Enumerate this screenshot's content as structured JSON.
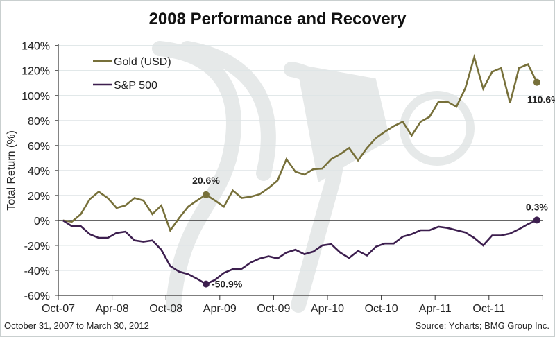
{
  "chart_data": {
    "type": "line",
    "title": "2008 Performance and Recovery",
    "ylabel": "Total Return (%)",
    "xlabel": "",
    "ylim": [
      -60,
      140
    ],
    "yticks": [
      "-60%",
      "-40%",
      "-20%",
      "0%",
      "20%",
      "40%",
      "60%",
      "80%",
      "100%",
      "120%",
      "140%"
    ],
    "ytick_values": [
      -60,
      -40,
      -20,
      0,
      20,
      40,
      60,
      80,
      100,
      120,
      140
    ],
    "xticks": [
      "Oct-07",
      "Apr-08",
      "Oct-08",
      "Apr-09",
      "Oct-09",
      "Apr-10",
      "Oct-10",
      "Apr-11",
      "Oct-11"
    ],
    "x_start": "Oct-07",
    "x_end": "Mar-12",
    "x_frequency": "monthly",
    "grid": true,
    "legend_position": "top-left",
    "series": [
      {
        "name": "Gold (USD)",
        "color": "#77703a",
        "values": [
          0,
          -1,
          5,
          17,
          23,
          18,
          10,
          12,
          18,
          16,
          5,
          12,
          -8,
          2,
          11,
          16,
          20.6,
          16,
          11,
          24,
          18,
          19,
          21,
          26,
          32,
          49,
          39,
          36.7,
          41,
          41.5,
          49,
          53,
          58,
          48,
          58,
          66,
          71,
          75.5,
          79,
          68,
          79,
          83,
          95,
          95,
          91,
          106,
          130.7,
          105.5,
          119,
          122,
          94,
          122,
          125,
          110.6
        ]
      },
      {
        "name": "S&P 500",
        "color": "#3d1f4f",
        "values": [
          0,
          -4.6,
          -4.6,
          -11,
          -14,
          -14,
          -10,
          -9,
          -16,
          -17,
          -16,
          -23.5,
          -36.5,
          -41,
          -43,
          -46.7,
          -50.9,
          -47.6,
          -42,
          -39,
          -38.7,
          -33.7,
          -30.5,
          -28.7,
          -30.4,
          -25.7,
          -23.5,
          -27,
          -25,
          -20,
          -19,
          -25.7,
          -30,
          -24.4,
          -28,
          -21,
          -18.5,
          -18.5,
          -13,
          -11,
          -7.8,
          -7.8,
          -5,
          -6,
          -7.8,
          -9.6,
          -14,
          -20,
          -12,
          -12,
          -10.5,
          -7,
          -3,
          0.3
        ]
      }
    ],
    "annotations": [
      {
        "series": 0,
        "index": 16,
        "label": "20.6%"
      },
      {
        "series": 1,
        "index": 16,
        "label": "-50.9%"
      },
      {
        "series": 0,
        "index": 53,
        "label": "110.6%"
      },
      {
        "series": 1,
        "index": 53,
        "label": "0.3%"
      }
    ]
  },
  "footer": {
    "date_range": "October 31, 2007 to March 30, 2012",
    "source": "Source: Ycharts; BMG Group Inc."
  }
}
